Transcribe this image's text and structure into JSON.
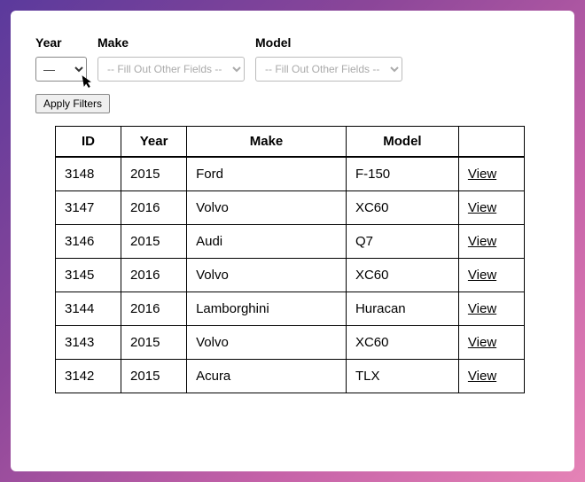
{
  "filters": {
    "year": {
      "label": "Year",
      "value": "—"
    },
    "make": {
      "label": "Make",
      "placeholder": "-- Fill Out Other Fields --"
    },
    "model": {
      "label": "Model",
      "placeholder": "-- Fill Out Other Fields --"
    },
    "apply_label": "Apply Filters"
  },
  "table": {
    "headers": {
      "id": "ID",
      "year": "Year",
      "make": "Make",
      "model": "Model",
      "action": ""
    },
    "view_label": "View",
    "rows": [
      {
        "id": "3148",
        "year": "2015",
        "make": "Ford",
        "model": "F-150"
      },
      {
        "id": "3147",
        "year": "2016",
        "make": "Volvo",
        "model": "XC60"
      },
      {
        "id": "3146",
        "year": "2015",
        "make": "Audi",
        "model": "Q7"
      },
      {
        "id": "3145",
        "year": "2016",
        "make": "Volvo",
        "model": "XC60"
      },
      {
        "id": "3144",
        "year": "2016",
        "make": "Lamborghini",
        "model": "Huracan"
      },
      {
        "id": "3143",
        "year": "2015",
        "make": "Volvo",
        "model": "XC60"
      },
      {
        "id": "3142",
        "year": "2015",
        "make": "Acura",
        "model": "TLX"
      }
    ]
  }
}
